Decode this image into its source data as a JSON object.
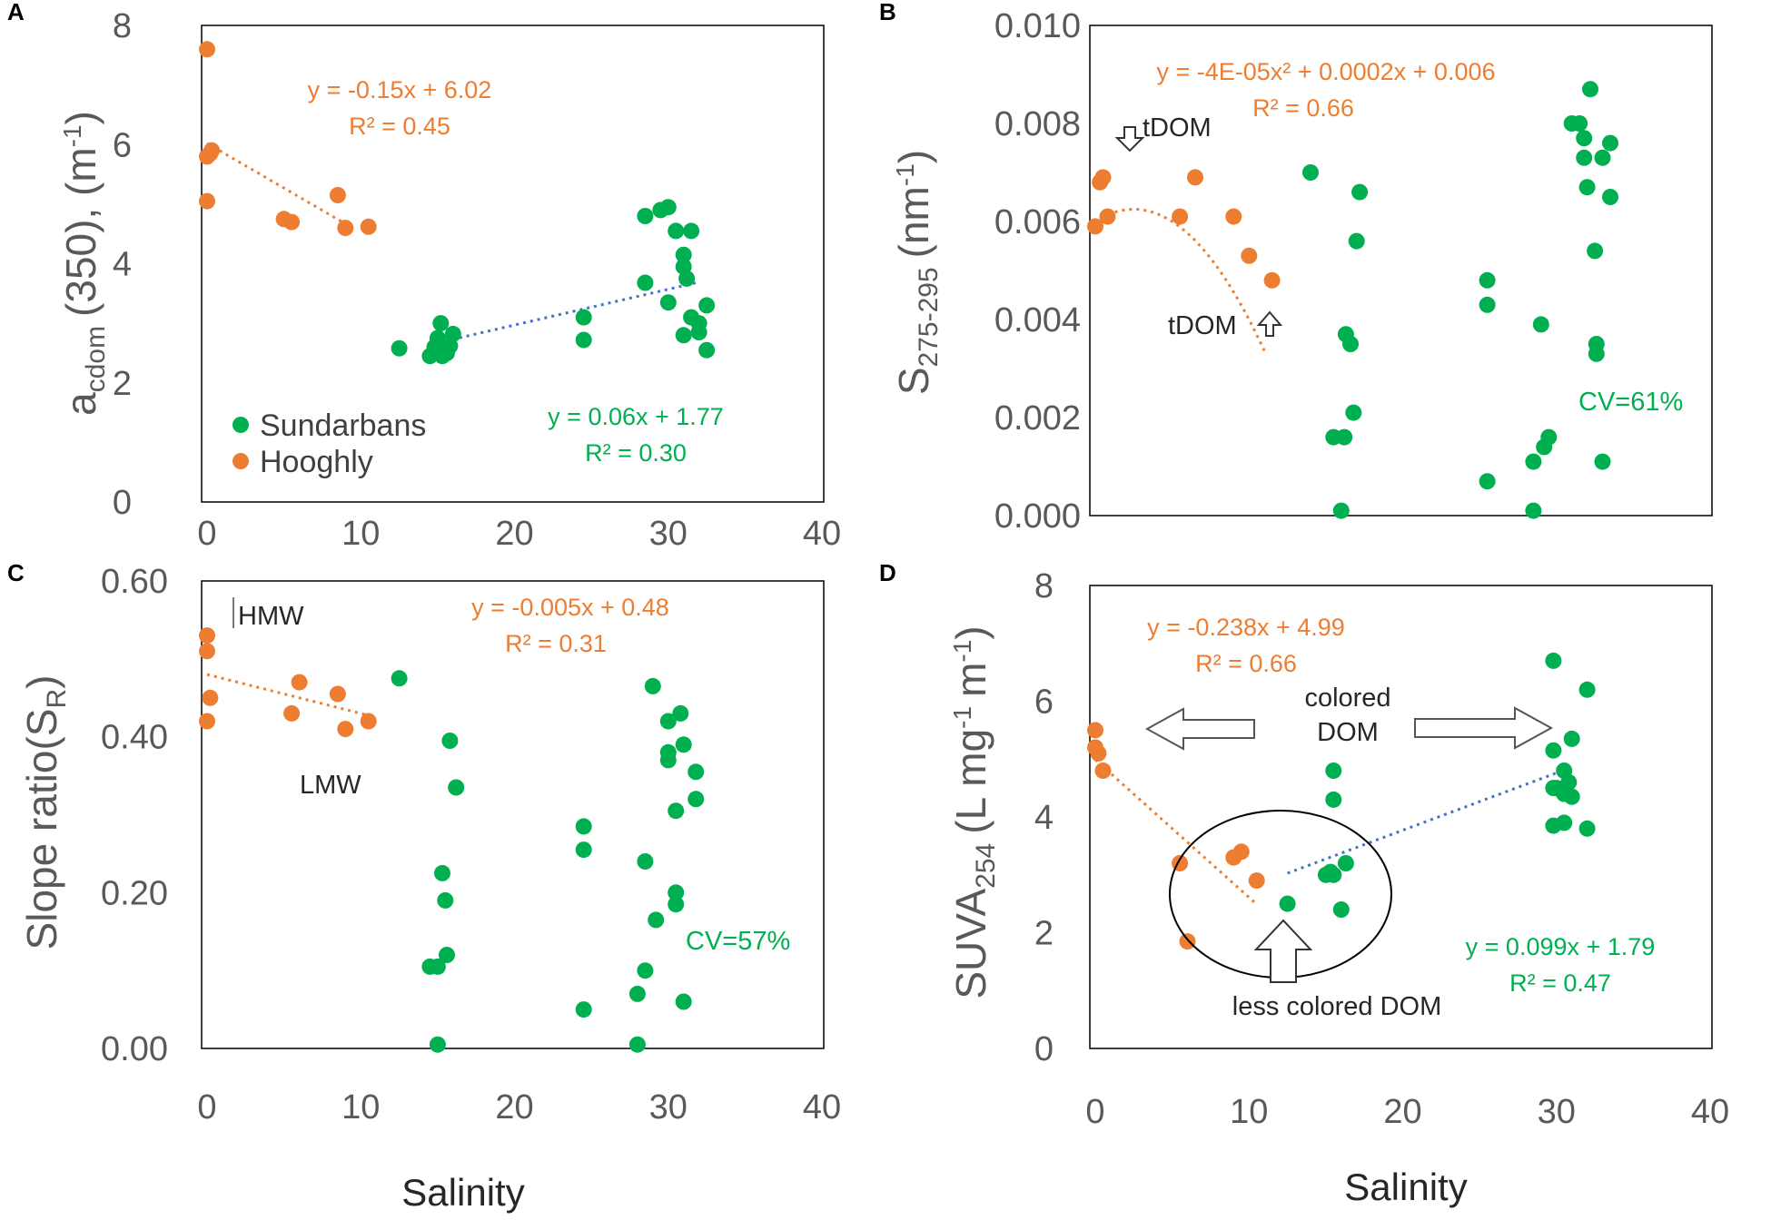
{
  "colors": {
    "hooghly": "#ED7D31",
    "sundarbans": "#00B050",
    "trend_blue": "#4472C4",
    "axis_text": "#595959"
  },
  "chart_data": [
    {
      "panel": "A",
      "type": "scatter",
      "ylabel_main": "a",
      "ylabel_sub": "cdom",
      "ylabel_rest": "(350), (m",
      "ylabel_sup": "-1",
      "ylabel_end": ")",
      "xlabel": "",
      "xlim": [
        0,
        40
      ],
      "ylim": [
        0,
        8
      ],
      "xticks": [
        "0",
        "10",
        "20",
        "30",
        "40"
      ],
      "yticks": [
        "0",
        "2",
        "4",
        "6",
        "8"
      ],
      "legend": [
        {
          "label": "Sundarbans",
          "series": "sundarbans"
        },
        {
          "label": "Hooghly",
          "series": "hooghly"
        }
      ],
      "series": [
        {
          "name": "Hooghly",
          "key": "hooghly",
          "points": [
            [
              0,
              7.6
            ],
            [
              0,
              5.8
            ],
            [
              0.2,
              5.85
            ],
            [
              0.3,
              5.9
            ],
            [
              0,
              5.05
            ],
            [
              5,
              4.75
            ],
            [
              5.5,
              4.7
            ],
            [
              8.5,
              5.15
            ],
            [
              9,
              4.6
            ],
            [
              10.5,
              4.62
            ]
          ]
        },
        {
          "name": "Sundarbans",
          "key": "sundarbans",
          "points": [
            [
              12.5,
              2.58
            ],
            [
              14.5,
              2.45
            ],
            [
              14.8,
              2.6
            ],
            [
              15,
              2.75
            ],
            [
              15.2,
              3.0
            ],
            [
              15.3,
              2.45
            ],
            [
              15.6,
              2.5
            ],
            [
              15.8,
              2.62
            ],
            [
              16,
              2.82
            ],
            [
              24.5,
              3.1
            ],
            [
              24.5,
              2.72
            ],
            [
              28.5,
              4.8
            ],
            [
              29.5,
              4.9
            ],
            [
              30,
              4.95
            ],
            [
              30.5,
              4.55
            ],
            [
              31,
              4.15
            ],
            [
              31,
              3.95
            ],
            [
              31.2,
              3.75
            ],
            [
              31.5,
              4.55
            ],
            [
              30,
              3.35
            ],
            [
              31,
              2.8
            ],
            [
              31.5,
              3.1
            ],
            [
              32,
              3.0
            ],
            [
              32,
              2.85
            ],
            [
              32.5,
              3.3
            ],
            [
              32.5,
              2.55
            ],
            [
              28.5,
              3.68
            ]
          ]
        }
      ],
      "trendlines": [
        {
          "series": "hooghly",
          "kind": "linear",
          "a": -0.15,
          "b": 6.02,
          "x_range": [
            0,
            9.5
          ],
          "equation": "y = -0.15x + 6.02",
          "r2": "R² = 0.45"
        },
        {
          "series": "sundarbans",
          "kind": "linear",
          "a": 0.06,
          "b": 1.77,
          "x_range": [
            15.5,
            32
          ],
          "equation": "y = 0.06x + 1.77",
          "r2": "R² = 0.30"
        }
      ],
      "annotations": []
    },
    {
      "panel": "B",
      "type": "scatter",
      "ylabel_main": "S",
      "ylabel_sub": "275-295",
      "ylabel_rest": "(nm",
      "ylabel_sup": "-1",
      "ylabel_end": ")",
      "xlabel": "",
      "xlim": [
        0,
        40
      ],
      "ylim": [
        0,
        0.01
      ],
      "xticks": [],
      "yticks": [
        "0.000",
        "0.002",
        "0.004",
        "0.006",
        "0.008",
        "0.010"
      ],
      "series": [
        {
          "name": "Hooghly",
          "key": "hooghly",
          "points": [
            [
              0,
              0.0059
            ],
            [
              0.3,
              0.0068
            ],
            [
              0.5,
              0.0069
            ],
            [
              0.8,
              0.0061
            ],
            [
              5.5,
              0.0061
            ],
            [
              6.5,
              0.0069
            ],
            [
              9,
              0.0061
            ],
            [
              10,
              0.0053
            ],
            [
              11.5,
              0.0048
            ]
          ]
        },
        {
          "name": "Sundarbans",
          "key": "sundarbans",
          "points": [
            [
              14,
              0.007
            ],
            [
              15.5,
              0.0016
            ],
            [
              16,
              0.0001
            ],
            [
              16.2,
              0.0016
            ],
            [
              16.3,
              0.0037
            ],
            [
              16.6,
              0.0035
            ],
            [
              16.8,
              0.0021
            ],
            [
              17,
              0.0056
            ],
            [
              17.2,
              0.0066
            ],
            [
              25.5,
              0.0048
            ],
            [
              25.5,
              0.0043
            ],
            [
              25.5,
              0.0007
            ],
            [
              28.5,
              0.0011
            ],
            [
              29,
              0.0039
            ],
            [
              29.2,
              0.0014
            ],
            [
              29.5,
              0.0016
            ],
            [
              31,
              0.008
            ],
            [
              31.5,
              0.008
            ],
            [
              31.8,
              0.0077
            ],
            [
              31.8,
              0.0073
            ],
            [
              32,
              0.0067
            ],
            [
              32.2,
              0.0087
            ],
            [
              32.5,
              0.0054
            ],
            [
              32.6,
              0.0035
            ],
            [
              32.6,
              0.0033
            ],
            [
              33,
              0.0073
            ],
            [
              33,
              0.0011
            ],
            [
              33.5,
              0.0076
            ],
            [
              33.5,
              0.0065
            ],
            [
              28.5,
              0.0001
            ]
          ]
        }
      ],
      "trendlines": [
        {
          "series": "hooghly",
          "kind": "poly2",
          "a": -4e-05,
          "b": 0.0002,
          "c": 0.006,
          "x_range": [
            0,
            11
          ],
          "equation": "y = -4E-05x² + 0.0002x + 0.006",
          "r2": "R² = 0.66"
        }
      ],
      "annotations": [
        {
          "text": "tDOM",
          "arrow": "down",
          "x": 1.5,
          "y": 0.0078
        },
        {
          "text": "tDOM",
          "arrow": "up",
          "x": 6.5,
          "y": 0.0039
        },
        {
          "text": "CV=61%",
          "x": 35,
          "y": 0.0023,
          "color": "sundarbans"
        }
      ]
    },
    {
      "panel": "C",
      "type": "scatter",
      "ylabel_main": "Slope ratio(S",
      "ylabel_sub": "R",
      "ylabel_rest": ")",
      "ylabel_sup": "",
      "ylabel_end": "",
      "xlabel": "Salinity",
      "xlim": [
        0,
        40
      ],
      "ylim": [
        0,
        0.6
      ],
      "xticks": [
        "0",
        "10",
        "20",
        "30",
        "40"
      ],
      "yticks": [
        "0.00",
        "0.20",
        "0.40",
        "0.60"
      ],
      "series": [
        {
          "name": "Hooghly",
          "key": "hooghly",
          "points": [
            [
              0,
              0.53
            ],
            [
              0,
              0.51
            ],
            [
              0.2,
              0.45
            ],
            [
              0,
              0.42
            ],
            [
              5.5,
              0.43
            ],
            [
              6,
              0.47
            ],
            [
              8.5,
              0.455
            ],
            [
              9,
              0.41
            ],
            [
              10.5,
              0.42
            ]
          ]
        },
        {
          "name": "Sundarbans",
          "key": "sundarbans",
          "points": [
            [
              12.5,
              0.475
            ],
            [
              14.5,
              0.105
            ],
            [
              15,
              0.005
            ],
            [
              15,
              0.105
            ],
            [
              15.3,
              0.225
            ],
            [
              15.5,
              0.19
            ],
            [
              15.6,
              0.12
            ],
            [
              15.8,
              0.395
            ],
            [
              16.2,
              0.335
            ],
            [
              24.5,
              0.285
            ],
            [
              24.5,
              0.255
            ],
            [
              24.5,
              0.05
            ],
            [
              28,
              0.07
            ],
            [
              28,
              0.005
            ],
            [
              28.5,
              0.24
            ],
            [
              28.5,
              0.1
            ],
            [
              29,
              0.465
            ],
            [
              29.2,
              0.165
            ],
            [
              30,
              0.42
            ],
            [
              30,
              0.38
            ],
            [
              30,
              0.37
            ],
            [
              30.5,
              0.305
            ],
            [
              30.5,
              0.2
            ],
            [
              30.5,
              0.185
            ],
            [
              30.8,
              0.43
            ],
            [
              31,
              0.39
            ],
            [
              31,
              0.06
            ],
            [
              31.8,
              0.355
            ],
            [
              31.8,
              0.32
            ]
          ]
        }
      ],
      "trendlines": [
        {
          "series": "hooghly",
          "kind": "linear",
          "a": -0.005,
          "b": 0.48,
          "x_range": [
            0,
            11
          ],
          "equation": "y = -0.005x + 0.48",
          "r2": "R² = 0.31"
        }
      ],
      "annotations": [
        {
          "text": "HMW",
          "x": 2.5,
          "y": 0.55
        },
        {
          "text": "LMW",
          "x": 4.5,
          "y": 0.335
        },
        {
          "text": "CV=57%",
          "x": 31.5,
          "y": 0.135,
          "color": "sundarbans"
        }
      ]
    },
    {
      "panel": "D",
      "type": "scatter",
      "ylabel_main": "SUVA",
      "ylabel_sub": "254",
      "ylabel_rest": "(L mg",
      "ylabel_sup": "-1",
      "ylabel_end": "m",
      "ylabel_sup2": "-1",
      "ylabel_end2": ")",
      "xlabel": "Salinity",
      "xlim": [
        0,
        40
      ],
      "ylim": [
        0,
        8
      ],
      "xticks": [
        "0",
        "10",
        "20",
        "30",
        "40"
      ],
      "yticks": [
        "0",
        "2",
        "4",
        "6",
        "8"
      ],
      "series": [
        {
          "name": "Hooghly",
          "key": "hooghly",
          "points": [
            [
              0,
              5.5
            ],
            [
              0,
              5.2
            ],
            [
              0.2,
              5.1
            ],
            [
              0.5,
              4.8
            ],
            [
              5.5,
              3.2
            ],
            [
              6,
              1.85
            ],
            [
              9,
              3.3
            ],
            [
              9.5,
              3.4
            ],
            [
              10.5,
              2.9
            ]
          ]
        },
        {
          "name": "Sundarbans",
          "key": "sundarbans",
          "points": [
            [
              12.5,
              2.5
            ],
            [
              15,
              3.0
            ],
            [
              15.3,
              3.05
            ],
            [
              15.5,
              3.0
            ],
            [
              15.5,
              4.8
            ],
            [
              15.5,
              4.3
            ],
            [
              16,
              2.4
            ],
            [
              16.3,
              3.2
            ],
            [
              29.8,
              6.7
            ],
            [
              29.8,
              5.15
            ],
            [
              29.8,
              4.5
            ],
            [
              29.8,
              3.85
            ],
            [
              30,
              4.5
            ],
            [
              30.5,
              4.8
            ],
            [
              30.5,
              4.4
            ],
            [
              30.5,
              3.9
            ],
            [
              30.8,
              4.6
            ],
            [
              31,
              5.35
            ],
            [
              31,
              4.35
            ],
            [
              32,
              6.2
            ],
            [
              32,
              3.8
            ]
          ]
        }
      ],
      "trendlines": [
        {
          "series": "hooghly",
          "kind": "linear",
          "a": -0.238,
          "b": 4.99,
          "x_range": [
            0,
            10.5
          ],
          "equation": "y = -0.238x + 4.99",
          "r2": "R² = 0.66"
        },
        {
          "series": "sundarbans",
          "kind": "linear",
          "a": 0.099,
          "b": 1.79,
          "x_range": [
            12.5,
            31
          ],
          "equation": "y = 0.099x + 1.79",
          "r2": "R² = 0.47"
        }
      ],
      "annotations": [
        {
          "text": "colored",
          "x": 16,
          "y": 6.2
        },
        {
          "text": "DOM",
          "x": 16,
          "y": 5.65
        },
        {
          "text": "less colored DOM",
          "x": 15.5,
          "y": 0.75
        }
      ]
    }
  ]
}
